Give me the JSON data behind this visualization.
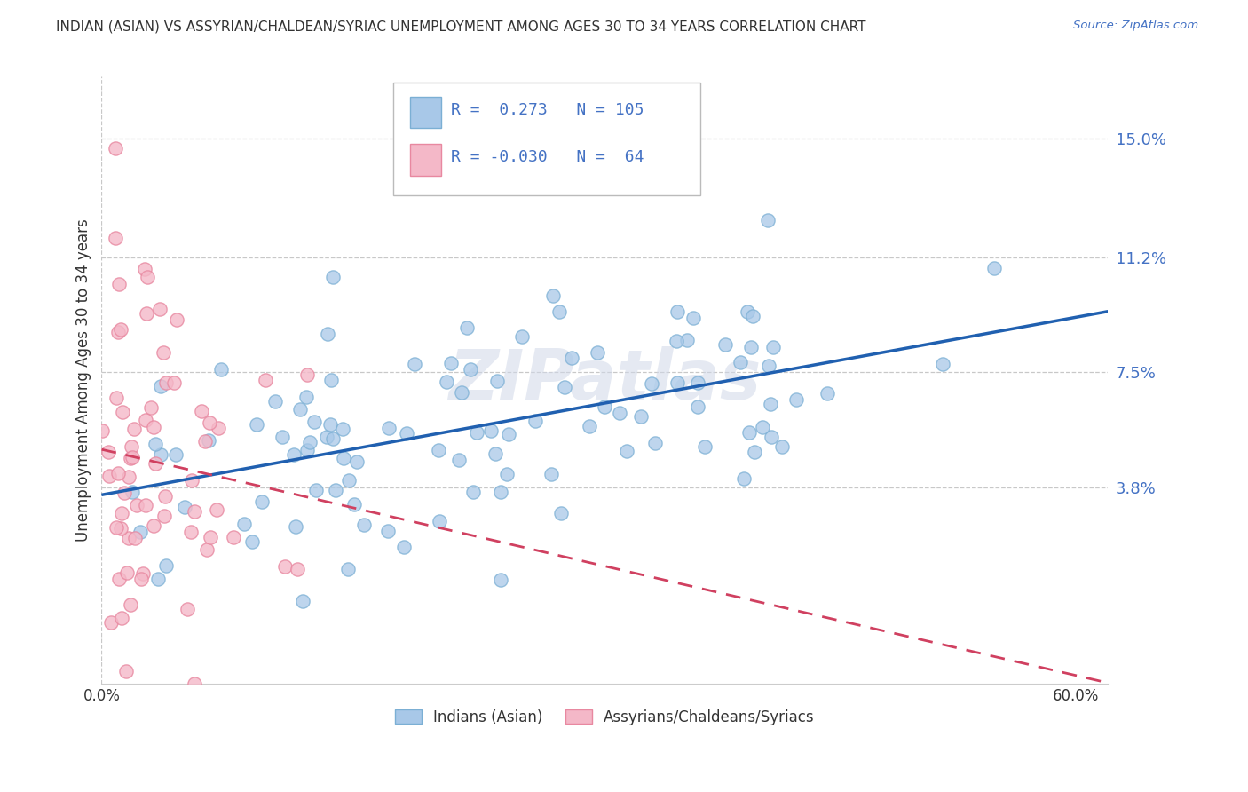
{
  "title": "INDIAN (ASIAN) VS ASSYRIAN/CHALDEAN/SYRIAC UNEMPLOYMENT AMONG AGES 30 TO 34 YEARS CORRELATION CHART",
  "source_text": "Source: ZipAtlas.com",
  "ylabel": "Unemployment Among Ages 30 to 34 years",
  "xlim": [
    0.0,
    0.62
  ],
  "ylim": [
    -0.025,
    0.17
  ],
  "xticks": [
    0.0,
    0.1,
    0.2,
    0.3,
    0.4,
    0.5,
    0.6
  ],
  "xticklabels": [
    "0.0%",
    "",
    "",
    "",
    "",
    "",
    "60.0%"
  ],
  "ytick_positions": [
    0.038,
    0.075,
    0.112,
    0.15
  ],
  "ytick_labels": [
    "3.8%",
    "7.5%",
    "11.2%",
    "15.0%"
  ],
  "R_blue": 0.273,
  "N_blue": 105,
  "R_pink": -0.03,
  "N_pink": 64,
  "blue_color": "#a8c8e8",
  "blue_edge_color": "#7bafd4",
  "pink_color": "#f4b8c8",
  "pink_edge_color": "#e888a0",
  "trend_blue_color": "#2060b0",
  "trend_pink_color": "#d04060",
  "legend_label_blue": "Indians (Asian)",
  "legend_label_pink": "Assyrians/Chaldeans/Syriacs",
  "watermark": "ZIPatlas",
  "background_color": "#ffffff",
  "grid_color": "#c8c8c8",
  "title_color": "#333333",
  "source_color": "#4472c4",
  "axis_label_color": "#4472c4",
  "tick_label_color": "#333333"
}
